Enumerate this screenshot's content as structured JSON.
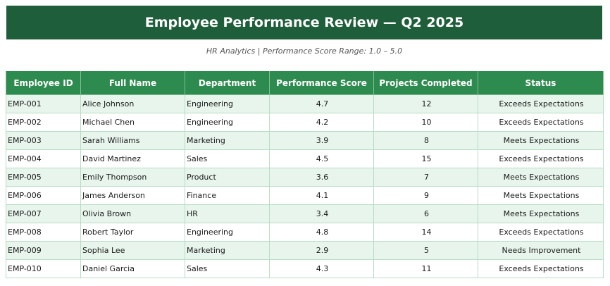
{
  "title": "Employee Performance Review — Q2 2025",
  "subtitle": "HR Analytics  |  Performance Score Range: 1.0 – 5.0",
  "table": {
    "headers": [
      "Employee ID",
      "Full Name",
      "Department",
      "Performance Score",
      "Projects Completed",
      "Status"
    ],
    "rows": [
      [
        "EMP-001",
        "Alice Johnson",
        "Engineering",
        "4.7",
        "12",
        "Exceeds Expectations"
      ],
      [
        "EMP-002",
        "Michael Chen",
        "Engineering",
        "4.2",
        "10",
        "Exceeds Expectations"
      ],
      [
        "EMP-003",
        "Sarah Williams",
        "Marketing",
        "3.9",
        "8",
        "Meets Expectations"
      ],
      [
        "EMP-004",
        "David Martinez",
        "Sales",
        "4.5",
        "15",
        "Exceeds Expectations"
      ],
      [
        "EMP-005",
        "Emily Thompson",
        "Product",
        "3.6",
        "7",
        "Meets Expectations"
      ],
      [
        "EMP-006",
        "James Anderson",
        "Finance",
        "4.1",
        "9",
        "Meets Expectations"
      ],
      [
        "EMP-007",
        "Olivia Brown",
        "HR",
        "3.4",
        "6",
        "Meets Expectations"
      ],
      [
        "EMP-008",
        "Robert Taylor",
        "Engineering",
        "4.8",
        "14",
        "Exceeds Expectations"
      ],
      [
        "EMP-009",
        "Sophia Lee",
        "Marketing",
        "2.9",
        "5",
        "Needs Improvement"
      ],
      [
        "EMP-010",
        "Daniel Garcia",
        "Sales",
        "4.3",
        "11",
        "Exceeds Expectations"
      ]
    ]
  },
  "colors": {
    "title_bg": "#1f5e3a",
    "header_bg": "#2e8b4f",
    "row_alt_bg": "#e8f5ec",
    "row_bg": "#ffffff"
  }
}
